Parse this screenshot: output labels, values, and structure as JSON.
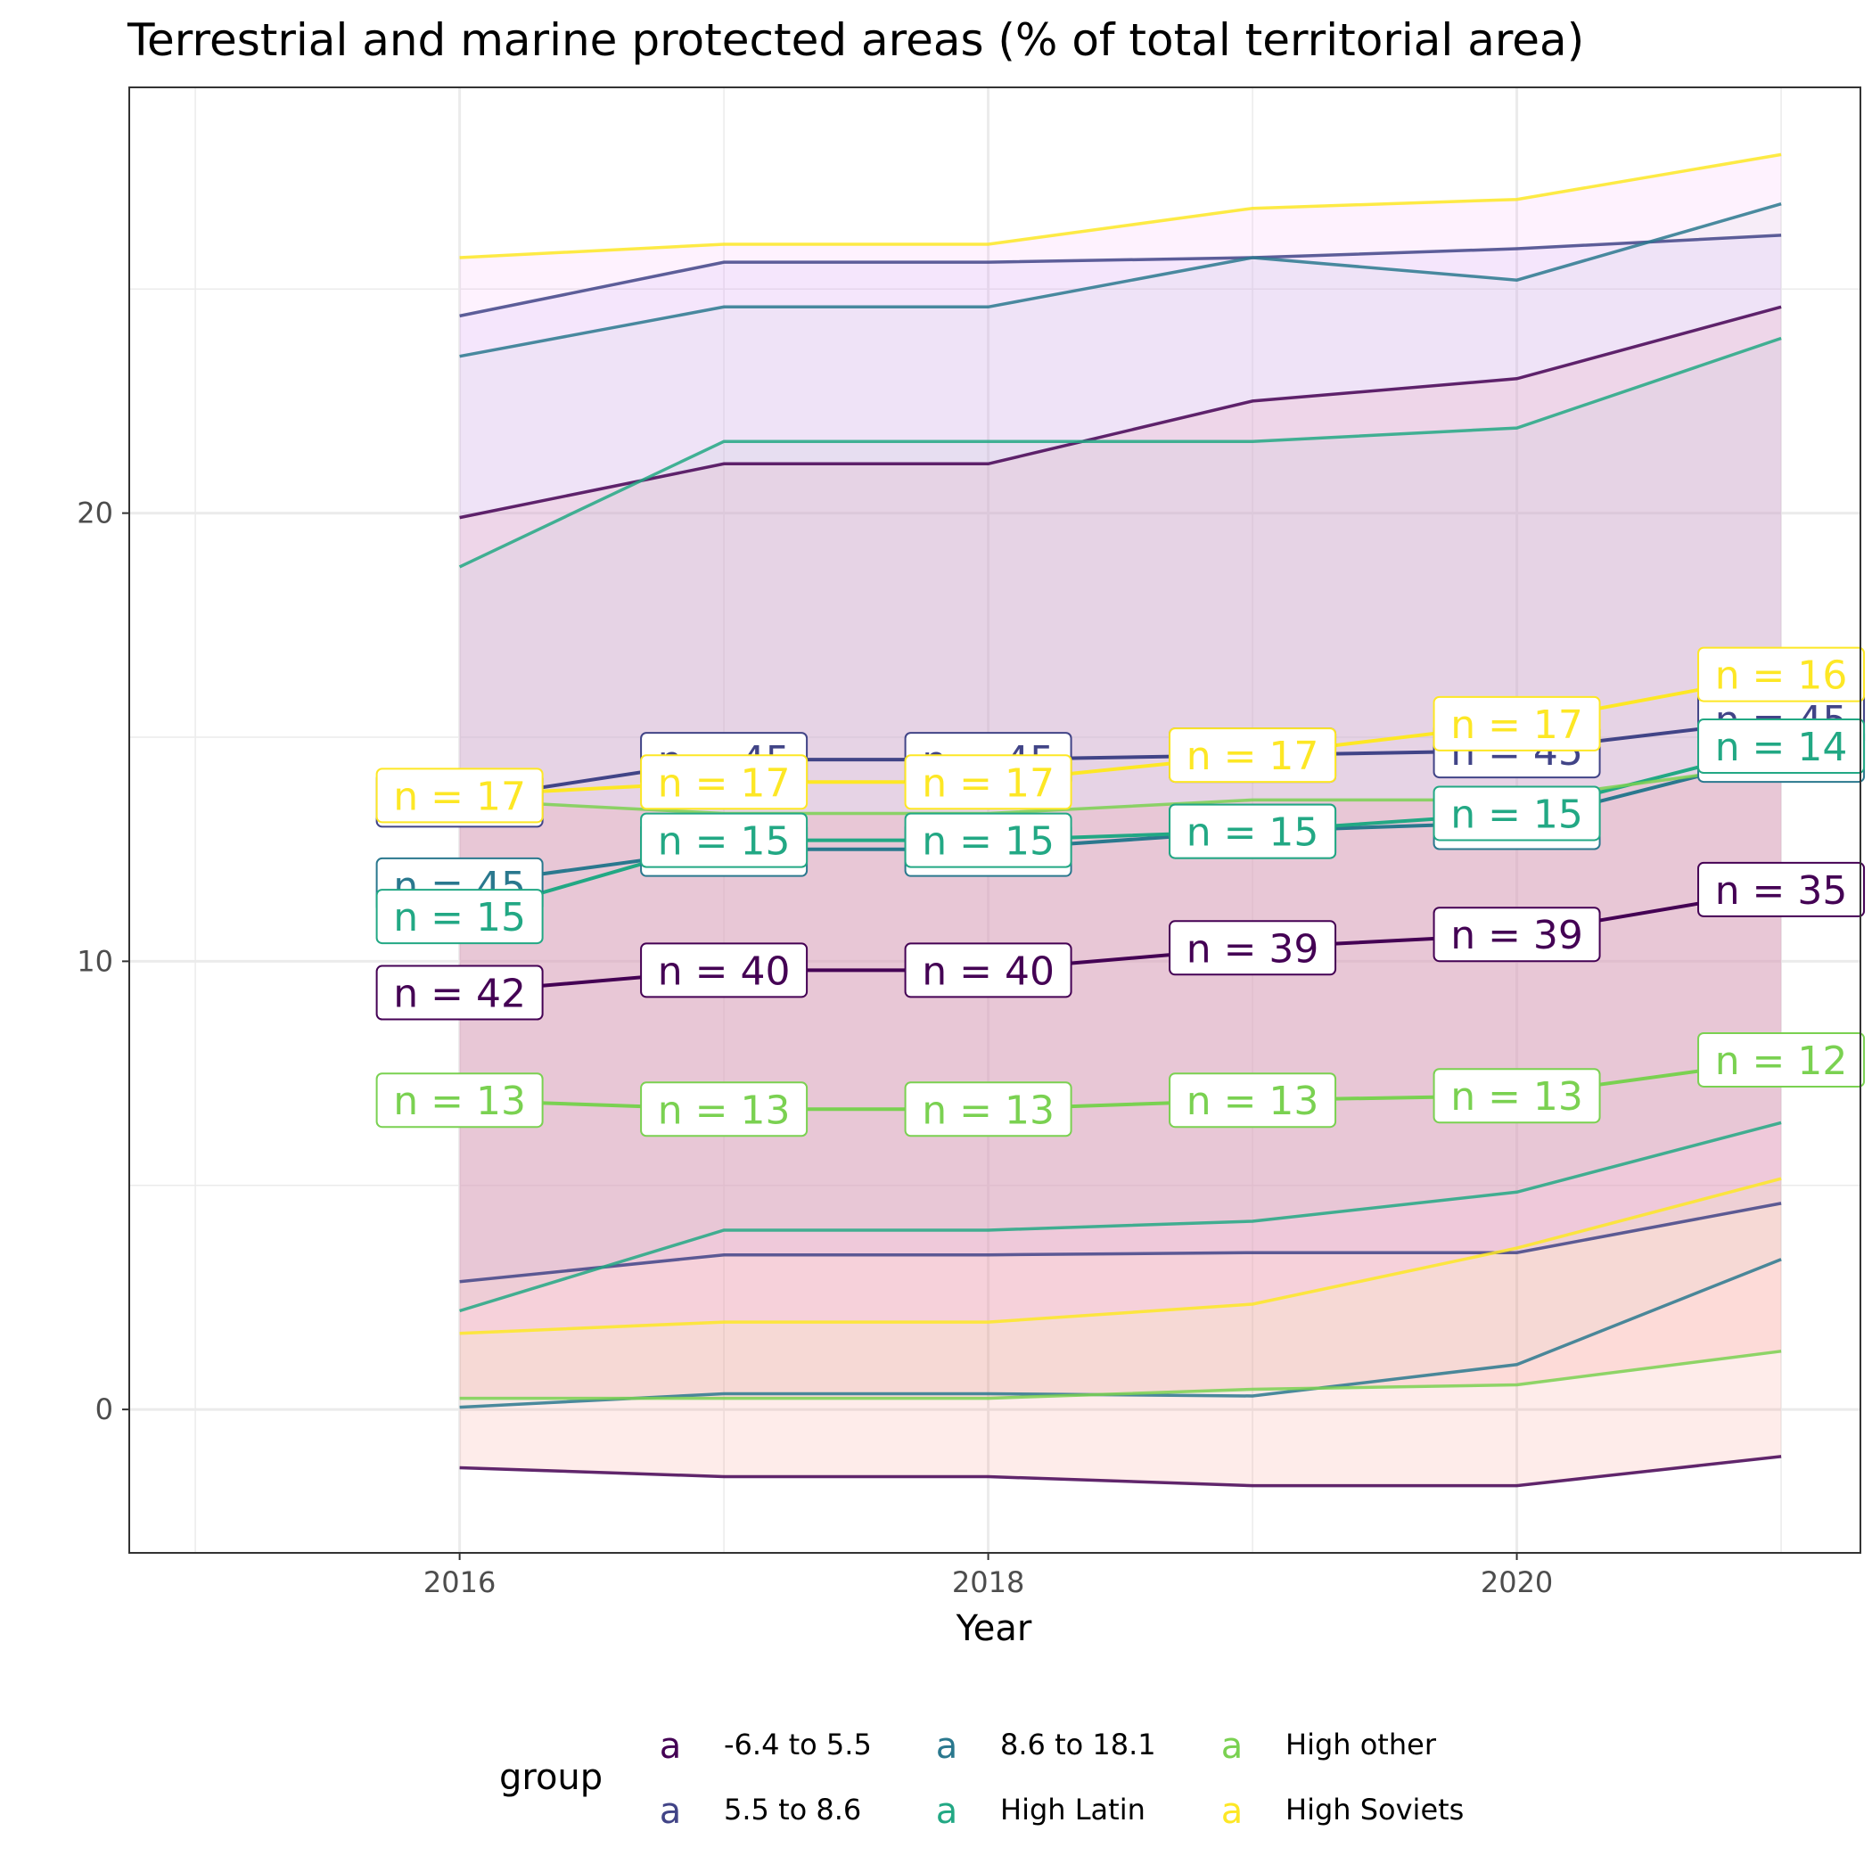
{
  "chart_data": {
    "type": "line",
    "title": "Terrestrial and marine protected areas (% of total territorial area)",
    "xlabel": "Year",
    "ylabel": "",
    "xlim": [
      2014.75,
      2021.3
    ],
    "ylim": [
      -3.2,
      29.5
    ],
    "x_ticks": [
      2016,
      2018,
      2020
    ],
    "y_ticks": [
      0,
      10,
      20
    ],
    "x_gridlines_minor": [
      2015,
      2017,
      2019,
      2021
    ],
    "y_gridlines_minor": [
      5,
      15,
      25
    ],
    "grid": true,
    "legend": {
      "title": "group",
      "position": "bottom",
      "key_glyph": "a",
      "entries": [
        "-6.4 to 5.5",
        "5.5 to 8.6",
        "8.6 to 18.1",
        "High Latin",
        "High other",
        "High Soviets"
      ]
    },
    "x": [
      2016,
      2017,
      2018,
      2019,
      2020,
      2021
    ],
    "series": [
      {
        "name": "-6.4 to 5.5",
        "color": "#440154",
        "fill": "#F8766D",
        "mean": [
          9.3,
          9.8,
          9.8,
          10.3,
          10.6,
          11.6
        ],
        "upper": [
          19.9,
          21.1,
          21.1,
          22.5,
          23.0,
          24.6
        ],
        "lower": [
          -1.3,
          -1.5,
          -1.5,
          -1.7,
          -1.7,
          -1.05
        ],
        "n": [
          "n = 42",
          "n = 40",
          "n = 40",
          "n = 39",
          "n = 39",
          "n = 35"
        ]
      },
      {
        "name": "5.5 to 8.6",
        "color": "#414487",
        "fill": "#B79FF0",
        "mean": [
          13.6,
          14.5,
          14.5,
          14.6,
          14.7,
          15.4
        ],
        "upper": [
          24.4,
          25.6,
          25.6,
          25.7,
          25.9,
          26.2
        ],
        "lower": [
          2.85,
          3.45,
          3.45,
          3.5,
          3.5,
          4.6
        ],
        "n": [
          "n = 45",
          "n = 45",
          "n = 45",
          "n = 45",
          "n = 45",
          "n = 45"
        ]
      },
      {
        "name": "8.6 to 18.1",
        "color": "#2A788E",
        "fill": "#C8DCD6",
        "mean": [
          11.7,
          12.5,
          12.5,
          12.9,
          13.1,
          14.6
        ],
        "upper": [
          23.5,
          24.6,
          24.6,
          25.7,
          25.2,
          26.9
        ],
        "lower": [
          0.05,
          0.35,
          0.35,
          0.3,
          1.0,
          3.35
        ],
        "n": [
          "n = 45",
          "n = 45",
          "n = 45",
          "n = 45",
          "n = 45",
          "n = 45"
        ]
      },
      {
        "name": "High Latin",
        "color": "#22A884",
        "fill": "#AFC7C8",
        "mean": [
          11.0,
          12.7,
          12.7,
          12.9,
          13.3,
          14.8
        ],
        "upper": [
          18.8,
          21.6,
          21.6,
          21.6,
          21.9,
          23.9
        ],
        "lower": [
          2.2,
          4.0,
          4.0,
          4.2,
          4.85,
          6.4
        ],
        "n": [
          "n = 15",
          "n = 15",
          "n = 15",
          "n = 15",
          "n = 15",
          "n = 14"
        ]
      },
      {
        "name": "High other",
        "color": "#7AD151",
        "fill": "#F8766D",
        "mean": [
          6.9,
          6.7,
          6.7,
          6.9,
          7.0,
          7.8
        ],
        "upper": [
          13.6,
          13.3,
          13.3,
          13.6,
          13.6,
          14.4
        ],
        "lower": [
          0.25,
          0.25,
          0.25,
          0.45,
          0.55,
          1.3
        ],
        "n": [
          "n = 13",
          "n = 13",
          "n = 13",
          "n = 13",
          "n = 13",
          "n = 12"
        ]
      },
      {
        "name": "High Soviets",
        "color": "#FDE725",
        "fill": "#F5A6F7",
        "mean": [
          13.7,
          14.0,
          14.0,
          14.6,
          15.3,
          16.4
        ],
        "upper": [
          25.7,
          26.0,
          26.0,
          26.8,
          27.0,
          28.0
        ],
        "lower": [
          1.7,
          1.95,
          1.95,
          2.35,
          3.6,
          5.15
        ],
        "n": [
          "n = 17",
          "n = 17",
          "n = 17",
          "n = 17",
          "n = 17",
          "n = 16"
        ]
      }
    ]
  }
}
